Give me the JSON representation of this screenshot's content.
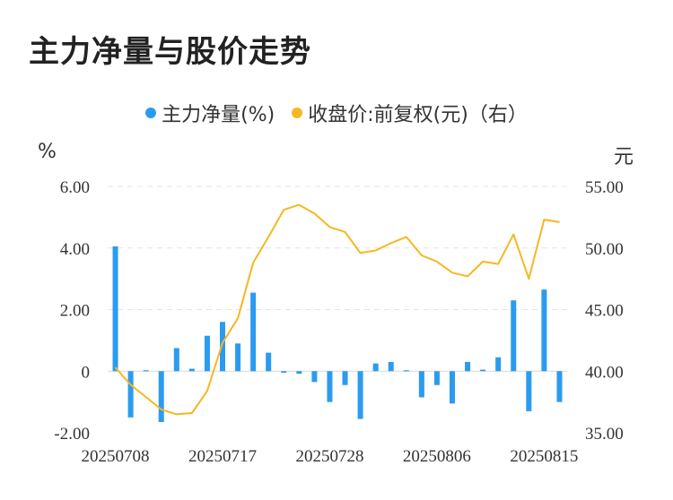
{
  "title": "主力净量与股价走势",
  "legend": {
    "bar_label": "主力净量(%)",
    "line_label": "收盘价:前复权(元)（右）"
  },
  "units": {
    "left": "%",
    "right": "元"
  },
  "colors": {
    "bar": "#2b9bf0",
    "line": "#f5b822",
    "grid": "#e3e3e3"
  },
  "chart_data": {
    "type": "bar",
    "x_tick_labels": [
      "20250708",
      "20250717",
      "20250728",
      "20250806",
      "20250815"
    ],
    "x_tick_index": [
      0,
      7,
      14,
      21,
      28
    ],
    "y_left": {
      "ticks": [
        "6.00",
        "4.00",
        "2.00",
        "0",
        "-2.00"
      ],
      "ylim": [
        -2,
        6
      ]
    },
    "y_right": {
      "ticks": [
        "55.00",
        "50.00",
        "45.00",
        "40.00",
        "35.00"
      ],
      "ylim": [
        35,
        55
      ]
    },
    "series": [
      {
        "name": "主力净量(%)",
        "type": "bar",
        "values": [
          4.05,
          -1.5,
          0.03,
          -1.65,
          0.75,
          0.08,
          1.15,
          1.6,
          0.9,
          2.55,
          0.6,
          -0.05,
          -0.08,
          -0.35,
          -1.0,
          -0.45,
          -1.55,
          0.25,
          0.3,
          0.03,
          -0.85,
          -0.45,
          -1.05,
          0.3,
          0.05,
          0.45,
          2.3,
          -1.3,
          2.65,
          -1.0
        ]
      },
      {
        "name": "收盘价:前复权(元)（右）",
        "type": "line",
        "values": [
          40.3,
          38.9,
          37.9,
          36.9,
          36.5,
          36.6,
          38.4,
          42.3,
          44.3,
          48.8,
          50.9,
          53.1,
          53.5,
          52.8,
          51.7,
          51.3,
          49.6,
          49.8,
          50.4,
          50.9,
          49.4,
          48.9,
          48.0,
          47.7,
          48.9,
          48.7,
          51.1,
          47.5,
          52.3,
          52.1
        ]
      }
    ]
  }
}
